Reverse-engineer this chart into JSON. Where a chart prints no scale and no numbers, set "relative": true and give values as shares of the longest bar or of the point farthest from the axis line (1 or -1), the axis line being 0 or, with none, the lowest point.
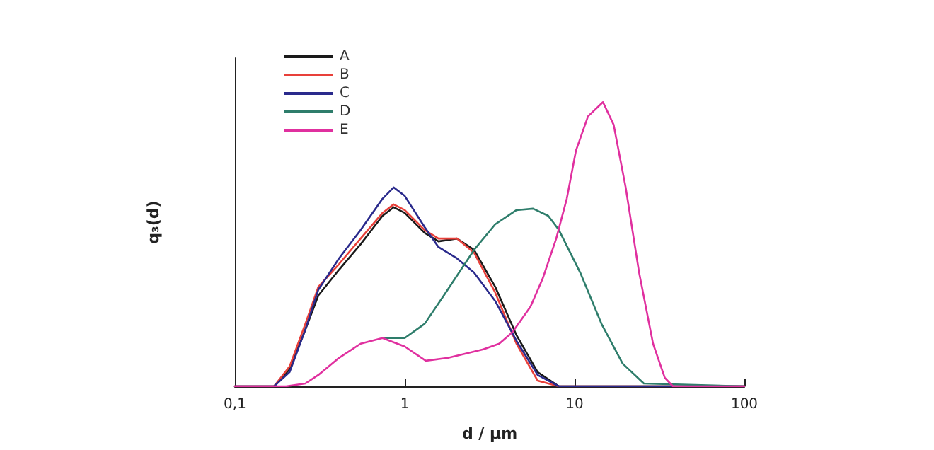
{
  "chart_data": {
    "type": "line",
    "relative": true,
    "xlabel": "d / μm",
    "ylabel": "q₃(d)",
    "log": "x",
    "xlim": [
      0.1,
      100
    ],
    "xticks": [
      {
        "value": 0.1,
        "label": "0,1"
      },
      1,
      10,
      100
    ],
    "tick_labels": "x",
    "grid": false,
    "legend": "top left",
    "marker": "none",
    "line_style": "solid",
    "series": [
      {
        "name": "A",
        "color": "#1a1a1a",
        "x": [
          0.1,
          0.17,
          0.21,
          0.26,
          0.31,
          0.41,
          0.55,
          0.74,
          0.86,
          1.0,
          1.31,
          1.58,
          2.03,
          2.56,
          3.41,
          4.55,
          6.06,
          8.09,
          10,
          100
        ],
        "values": [
          0,
          0,
          0.06,
          0.2,
          0.32,
          0.41,
          0.5,
          0.6,
          0.63,
          0.61,
          0.54,
          0.51,
          0.52,
          0.48,
          0.35,
          0.18,
          0.05,
          0,
          0,
          0
        ]
      },
      {
        "name": "B",
        "color": "#e8403a",
        "x": [
          0.1,
          0.17,
          0.21,
          0.26,
          0.31,
          0.41,
          0.55,
          0.74,
          0.86,
          1.0,
          1.31,
          1.58,
          2.03,
          2.56,
          3.41,
          4.55,
          6.06,
          8.09,
          10,
          100
        ],
        "values": [
          0,
          0,
          0.07,
          0.22,
          0.35,
          0.43,
          0.52,
          0.61,
          0.64,
          0.62,
          0.55,
          0.52,
          0.52,
          0.47,
          0.33,
          0.15,
          0.02,
          0,
          0,
          0
        ]
      },
      {
        "name": "C",
        "color": "#2a2a8c",
        "x": [
          0.1,
          0.17,
          0.21,
          0.26,
          0.31,
          0.41,
          0.55,
          0.74,
          0.86,
          1.0,
          1.31,
          1.58,
          2.03,
          2.56,
          3.41,
          4.55,
          6.06,
          8.09,
          10,
          100
        ],
        "values": [
          0,
          0,
          0.05,
          0.2,
          0.34,
          0.45,
          0.55,
          0.66,
          0.7,
          0.67,
          0.56,
          0.49,
          0.45,
          0.4,
          0.3,
          0.16,
          0.04,
          0,
          0,
          0
        ]
      },
      {
        "name": "D",
        "color": "#2e7d6b",
        "x": [
          0.74,
          1.0,
          1.31,
          1.7,
          2.56,
          3.41,
          4.55,
          5.7,
          7,
          8.09,
          10.8,
          14.4,
          19.2,
          25.6,
          100
        ],
        "values": [
          0.17,
          0.17,
          0.22,
          0.32,
          0.48,
          0.57,
          0.62,
          0.625,
          0.6,
          0.55,
          0.4,
          0.22,
          0.08,
          0.01,
          0
        ]
      },
      {
        "name": "E",
        "color": "#e0309f",
        "x": [
          0.1,
          0.2,
          0.26,
          0.31,
          0.41,
          0.55,
          0.74,
          1.0,
          1.33,
          1.8,
          2.9,
          3.6,
          4.3,
          5.5,
          6.5,
          7.8,
          9,
          10.2,
          12,
          14.7,
          17,
          20,
          24,
          29,
          34,
          38,
          100
        ],
        "values": [
          0,
          0,
          0.01,
          0.04,
          0.1,
          0.15,
          0.17,
          0.14,
          0.09,
          0.1,
          0.13,
          0.15,
          0.19,
          0.28,
          0.38,
          0.52,
          0.66,
          0.83,
          0.95,
          1.0,
          0.92,
          0.7,
          0.4,
          0.15,
          0.03,
          0,
          0
        ]
      }
    ]
  }
}
